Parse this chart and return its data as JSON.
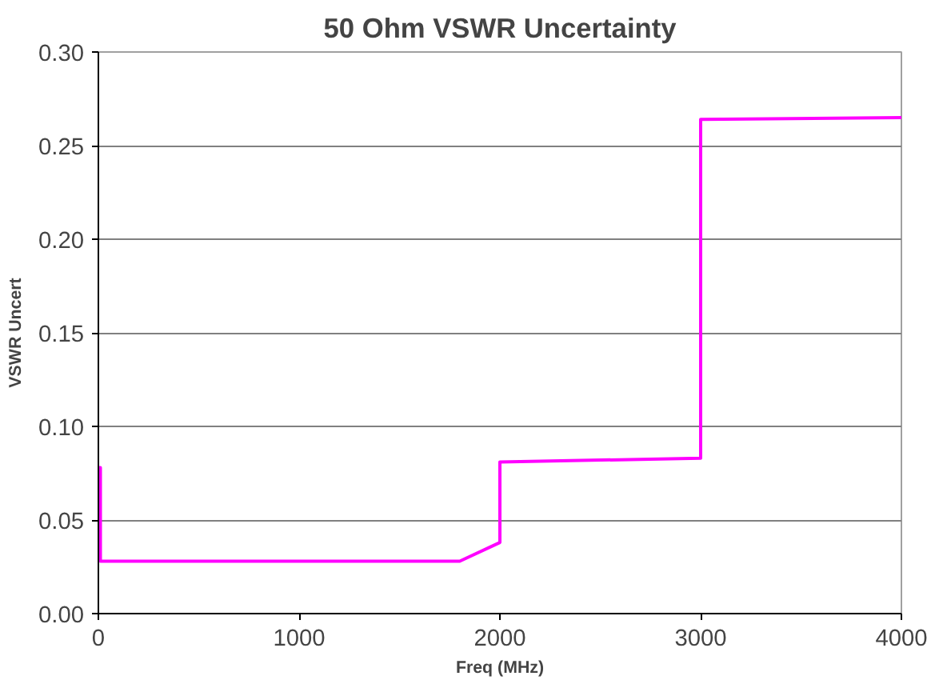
{
  "chart_data": {
    "type": "line",
    "title": "50 Ohm VSWR Uncertainty",
    "xlabel": "Freq (MHz)",
    "ylabel": "VSWR Uncert",
    "x": [
      0,
      10,
      10,
      1800,
      2000,
      2000,
      3000,
      3000,
      4000
    ],
    "series": [
      {
        "color": "#ff00ff",
        "values": [
          0.078,
          0.078,
          0.028,
          0.028,
          0.038,
          0.081,
          0.083,
          0.264,
          0.265
        ]
      }
    ],
    "xlim": [
      0,
      4000
    ],
    "xticks": [
      0,
      1000,
      2000,
      3000,
      4000
    ],
    "ylim": [
      0,
      0.3
    ],
    "yticks": [
      {
        "value": 0,
        "label": "0.00"
      },
      {
        "value": 0.05,
        "label": "0.05"
      },
      {
        "value": 0.1,
        "label": "0.10"
      },
      {
        "value": 0.15,
        "label": "0.15"
      },
      {
        "value": 0.2,
        "label": "0.20"
      },
      {
        "value": 0.25,
        "label": "0.25"
      },
      {
        "value": 0.3,
        "label": "0.30"
      }
    ],
    "grid": "y",
    "marker": "none",
    "line_style": "solid"
  }
}
